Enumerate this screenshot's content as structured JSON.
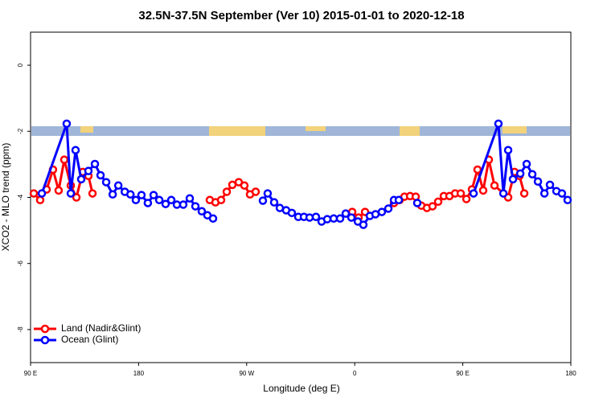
{
  "chart_data": {
    "type": "line",
    "title": "32.5N-37.5N September (Ver 10)   2015-01-01 to 2020-12-18",
    "xlabel": "Longitude (deg E)",
    "ylabel": "XCO2 - MLO trend (ppm)",
    "xlim": [
      -270,
      180
    ],
    "ylim": [
      -9,
      1
    ],
    "xticks": [
      {
        "value": -270,
        "label": "90 E"
      },
      {
        "value": -180,
        "label": "180"
      },
      {
        "value": -90,
        "label": "90 W"
      },
      0,
      {
        "value": 90,
        "label": "90 E"
      },
      180
    ],
    "yticks": [
      0,
      -2,
      -4,
      -6,
      -8
    ],
    "legend": "bottom-left",
    "series": [
      {
        "name": "Land (Nadir&Glint)",
        "color": "#ff0000",
        "x": [
          -267.3,
          -262,
          -256.6,
          -251.3,
          -246.6,
          -241.9,
          -236.5,
          -231.8,
          -226.5,
          -221.8,
          -218.4,
          null,
          -120.7,
          -116,
          -111.3,
          -106.6,
          -101.9,
          -96.6,
          -91.9,
          -87.2,
          -82.5,
          null,
          -2.1,
          3.2,
          8.6,
          null,
          32.7,
          37.4,
          41.4,
          46.1,
          50.8,
          55.5,
          60.1,
          64.8,
          69.5,
          74.2,
          78.9,
          83.6,
          88.3,
          93,
          97.6,
          102.3,
          107,
          111.7,
          116.4,
          127.8,
          133.1,
          137.2,
          141.2
        ],
        "values": [
          -3.88,
          -4.08,
          -3.76,
          -3.16,
          -3.79,
          -2.86,
          -3.64,
          -4.0,
          -3.23,
          -3.35,
          -3.88,
          null,
          -4.08,
          -4.15,
          -4.08,
          -3.83,
          -3.62,
          -3.54,
          -3.64,
          -3.91,
          -3.83,
          null,
          -4.44,
          -4.61,
          -4.44,
          null,
          -4.17,
          -4.08,
          -3.98,
          -3.96,
          -3.98,
          -4.25,
          -4.32,
          -4.27,
          -4.13,
          -3.96,
          -3.96,
          -3.88,
          -3.88,
          -4.05,
          -3.76,
          -3.16,
          -3.79,
          -2.86,
          -3.64,
          -4.0,
          -3.23,
          -3.35,
          -3.88
        ]
      },
      {
        "name": "Ocean (Glint)",
        "color": "#0000ff",
        "x": [
          -260.6,
          -239.9,
          -236.5,
          -232.5,
          -227.8,
          -221.8,
          -216.4,
          -211.7,
          -207,
          -201.6,
          -196.9,
          -191.5,
          -186.8,
          -182.3,
          -177.6,
          -172.3,
          -167.5,
          -162.8,
          -157.5,
          -152.8,
          -148.1,
          -142.8,
          -137.4,
          -132.7,
          -127.4,
          -122.7,
          -118,
          null,
          -76.5,
          -72.5,
          -67.1,
          -62.4,
          -57.1,
          -52.4,
          -47,
          -42.3,
          -37.6,
          -32.3,
          -27.6,
          -22.9,
          -17.5,
          -12.2,
          -7.5,
          -2.8,
          2.6,
          7.2,
          12.6,
          17.3,
          22.6,
          28,
          32.7,
          36.7,
          null,
          52.1,
          null,
          99,
          119.7,
          123.8,
          127.8,
          131.8,
          137.9,
          143.2,
          147.9,
          152.6,
          158,
          162.6,
          168,
          172.6,
          177.3
        ],
        "values": [
          -3.88,
          -1.77,
          -3.88,
          -2.57,
          -3.45,
          -3.2,
          -2.99,
          -3.33,
          -3.54,
          -3.91,
          -3.64,
          -3.83,
          -3.91,
          -4.08,
          -3.93,
          -4.17,
          -3.93,
          -4.08,
          -4.2,
          -4.08,
          -4.22,
          -4.22,
          -4.03,
          -4.27,
          -4.42,
          -4.54,
          -4.64,
          null,
          -4.1,
          -3.88,
          -4.15,
          -4.32,
          -4.39,
          -4.47,
          -4.59,
          -4.59,
          -4.61,
          -4.59,
          -4.73,
          -4.66,
          -4.64,
          -4.64,
          -4.49,
          -4.61,
          -4.73,
          -4.83,
          -4.56,
          -4.51,
          -4.44,
          -4.34,
          -4.08,
          -4.08,
          null,
          -4.17,
          null,
          -3.88,
          -1.77,
          -3.88,
          -2.57,
          -3.45,
          -3.28,
          -2.99,
          -3.3,
          -3.52,
          -3.88,
          -3.62,
          -3.81,
          -3.88,
          -4.08
        ]
      }
    ]
  }
}
